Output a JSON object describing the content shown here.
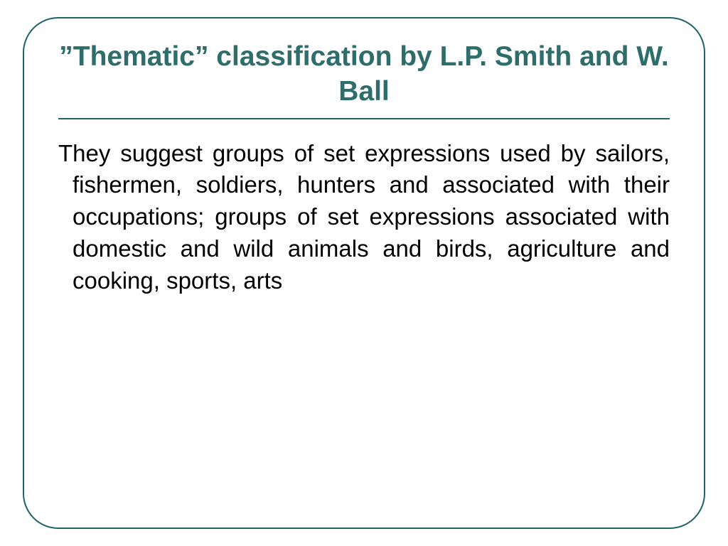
{
  "slide": {
    "title": "”Thematic” classification by L.P. Smith and W. Ball",
    "body": "They suggest groups of set expressions used by sailors, fishermen, soldiers, hunters and associated with their occupations; groups of set expressions associated with domestic and wild animals and birds, agriculture and cooking, sports, arts",
    "styling": {
      "container_width": 960,
      "container_height": 720,
      "border_color": "#1f6268",
      "border_width": 2.5,
      "border_radius": 50,
      "background_color": "#ffffff",
      "title_color": "#2d6d6a",
      "title_fontsize": 39,
      "title_fontweight": "bold",
      "underline_color": "#1f6268",
      "underline_height": 2,
      "body_color": "#000000",
      "body_fontsize": 33,
      "body_align": "justify",
      "font_family": "Verdana, Geneva, sans-serif"
    }
  }
}
